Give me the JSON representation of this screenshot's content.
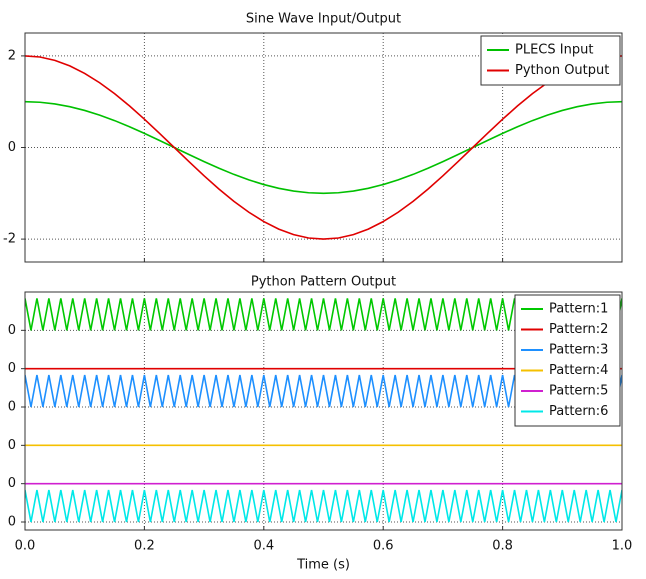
{
  "chart_data": [
    {
      "type": "line",
      "title": "Sine Wave Input/Output",
      "x": [
        0,
        0.025,
        0.05,
        0.075,
        0.1,
        0.125,
        0.15,
        0.175,
        0.2,
        0.225,
        0.25,
        0.275,
        0.3,
        0.325,
        0.35,
        0.375,
        0.4,
        0.425,
        0.45,
        0.475,
        0.5,
        0.525,
        0.55,
        0.575,
        0.6,
        0.625,
        0.65,
        0.675,
        0.7,
        0.725,
        0.75,
        0.775,
        0.8,
        0.825,
        0.85,
        0.875,
        0.9,
        0.925,
        0.95,
        0.975,
        1
      ],
      "series": [
        {
          "name": "PLECS Input",
          "color": "#00c000",
          "values": [
            1,
            0.988,
            0.951,
            0.891,
            0.809,
            0.707,
            0.588,
            0.454,
            0.309,
            0.156,
            0,
            -0.156,
            -0.309,
            -0.454,
            -0.588,
            -0.707,
            -0.809,
            -0.891,
            -0.951,
            -0.988,
            -1,
            -0.988,
            -0.951,
            -0.891,
            -0.809,
            -0.707,
            -0.588,
            -0.454,
            -0.309,
            -0.156,
            0,
            0.156,
            0.309,
            0.454,
            0.588,
            0.707,
            0.809,
            0.891,
            0.951,
            0.988,
            1
          ]
        },
        {
          "name": "Python Output",
          "color": "#e00000",
          "values": [
            2,
            1.976,
            1.902,
            1.782,
            1.618,
            1.414,
            1.176,
            0.908,
            0.618,
            0.312,
            0,
            -0.312,
            -0.618,
            -0.908,
            -1.176,
            -1.414,
            -1.618,
            -1.782,
            -1.902,
            -1.976,
            -2,
            -1.976,
            -1.902,
            -1.782,
            -1.618,
            -1.414,
            -1.176,
            -0.908,
            -0.618,
            -0.312,
            0,
            0.312,
            0.618,
            0.908,
            1.176,
            1.414,
            1.618,
            1.782,
            1.902,
            1.976,
            2
          ]
        }
      ],
      "xlim": [
        0,
        1
      ],
      "ylim": [
        -2.5,
        2.5
      ],
      "yticks": [
        -2,
        0,
        2
      ],
      "grid": true,
      "legend": "upper right"
    },
    {
      "type": "line",
      "title": "Python Pattern Output",
      "xlabel": "Time (s)",
      "x": [
        0,
        0.01,
        0.02,
        0.03,
        0.04,
        0.05,
        0.06,
        0.07,
        0.08,
        0.09,
        0.1,
        0.11,
        0.12,
        0.13,
        0.14,
        0.15,
        0.16,
        0.17,
        0.18,
        0.19,
        0.2,
        0.21,
        0.22,
        0.23,
        0.24,
        0.25,
        0.26,
        0.27,
        0.28,
        0.29,
        0.3,
        0.31,
        0.32,
        0.33,
        0.34,
        0.35,
        0.36,
        0.37,
        0.38,
        0.39,
        0.4,
        0.41,
        0.42,
        0.43,
        0.44,
        0.45,
        0.46,
        0.47,
        0.48,
        0.49,
        0.5,
        0.51,
        0.52,
        0.53,
        0.54,
        0.55,
        0.56,
        0.57,
        0.58,
        0.59,
        0.6,
        0.61,
        0.62,
        0.63,
        0.64,
        0.65,
        0.66,
        0.67,
        0.68,
        0.69,
        0.7,
        0.71,
        0.72,
        0.73,
        0.74,
        0.75,
        0.76,
        0.77,
        0.78,
        0.79,
        0.8,
        0.81,
        0.82,
        0.83,
        0.84,
        0.85,
        0.86,
        0.87,
        0.88,
        0.89,
        0.9,
        0.91,
        0.92,
        0.93,
        0.94,
        0.95,
        0.96,
        0.97,
        0.98,
        0.99,
        1
      ],
      "series": [
        {
          "name": "Pattern:1",
          "color": "#00c800",
          "offset": 0,
          "values": [
            1,
            0,
            1,
            0,
            1,
            0,
            1,
            0,
            1,
            0,
            1,
            0,
            1,
            0,
            1,
            0,
            1,
            0,
            1,
            0,
            1,
            0,
            1,
            0,
            1,
            0,
            1,
            0,
            1,
            0,
            1,
            0,
            1,
            0,
            1,
            0,
            1,
            0,
            1,
            0,
            1,
            0,
            1,
            0,
            1,
            0,
            1,
            0,
            1,
            0,
            1,
            0,
            1,
            0,
            1,
            0,
            1,
            0,
            1,
            0,
            1,
            0,
            1,
            0,
            1,
            0,
            1,
            0,
            1,
            0,
            1,
            0,
            1,
            0,
            1,
            0,
            1,
            0,
            1,
            0,
            1,
            0,
            1,
            0,
            1,
            0,
            1,
            0,
            1,
            0,
            1,
            0,
            1,
            0,
            1,
            0,
            1,
            0,
            1,
            0,
            1
          ]
        },
        {
          "name": "Pattern:2",
          "color": "#e00000",
          "offset": -1.2,
          "x": [
            0,
            1
          ],
          "values": [
            0,
            0
          ]
        },
        {
          "name": "Pattern:3",
          "color": "#1e90ff",
          "offset": -2.4,
          "values": [
            1,
            0,
            1,
            0,
            1,
            0,
            1,
            0,
            1,
            0,
            1,
            0,
            1,
            0,
            1,
            0,
            1,
            0,
            1,
            0,
            1,
            0,
            1,
            0,
            1,
            0,
            1,
            0,
            1,
            0,
            1,
            0,
            1,
            0,
            1,
            0,
            1,
            0,
            1,
            0,
            1,
            0,
            1,
            0,
            1,
            0,
            1,
            0,
            1,
            0,
            1,
            0,
            1,
            0,
            1,
            0,
            1,
            0,
            1,
            0,
            1,
            0,
            1,
            0,
            1,
            0,
            1,
            0,
            1,
            0,
            1,
            0,
            1,
            0,
            1,
            0,
            1,
            0,
            1,
            0,
            1,
            0,
            1,
            0,
            1,
            0,
            1,
            0,
            1,
            0,
            1,
            0,
            1,
            0,
            1,
            0,
            1,
            0,
            1,
            0,
            1
          ]
        },
        {
          "name": "Pattern:4",
          "color": "#f5c000",
          "offset": -3.6,
          "x": [
            0,
            1
          ],
          "values": [
            0,
            0
          ]
        },
        {
          "name": "Pattern:5",
          "color": "#d020d0",
          "offset": -4.8,
          "x": [
            0,
            1
          ],
          "values": [
            0,
            0
          ]
        },
        {
          "name": "Pattern:6",
          "color": "#00e8e8",
          "offset": -6.0,
          "values": [
            1,
            0,
            1,
            0,
            1,
            0,
            1,
            0,
            1,
            0,
            1,
            0,
            1,
            0,
            1,
            0,
            1,
            0,
            1,
            0,
            1,
            0,
            1,
            0,
            1,
            0,
            1,
            0,
            1,
            0,
            1,
            0,
            1,
            0,
            1,
            0,
            1,
            0,
            1,
            0,
            1,
            0,
            1,
            0,
            1,
            0,
            1,
            0,
            1,
            0,
            1,
            0,
            1,
            0,
            1,
            0,
            1,
            0,
            1,
            0,
            1,
            0,
            1,
            0,
            1,
            0,
            1,
            0,
            1,
            0,
            1,
            0,
            1,
            0,
            1,
            0,
            1,
            0,
            1,
            0,
            1,
            0,
            1,
            0,
            1,
            0,
            1,
            0,
            1,
            0,
            1,
            0,
            1,
            0,
            1,
            0,
            1,
            0,
            1,
            0,
            1
          ]
        }
      ],
      "xlim": [
        0,
        1
      ],
      "xticks": [
        {
          "value": 0,
          "label": "0.0"
        },
        0.2,
        0.4,
        0.6,
        0.8,
        {
          "value": 1,
          "label": "1.0"
        }
      ],
      "ylim": [
        -6.25,
        1.2
      ],
      "yticks": [
        {
          "value": 0,
          "label": "0"
        },
        {
          "value": -1.2,
          "label": "0"
        },
        {
          "value": -2.4,
          "label": "0"
        },
        {
          "value": -3.6,
          "label": "0"
        },
        {
          "value": -4.8,
          "label": "0"
        },
        {
          "value": -6.0,
          "label": "0"
        }
      ],
      "grid": true,
      "legend": "upper right"
    }
  ]
}
